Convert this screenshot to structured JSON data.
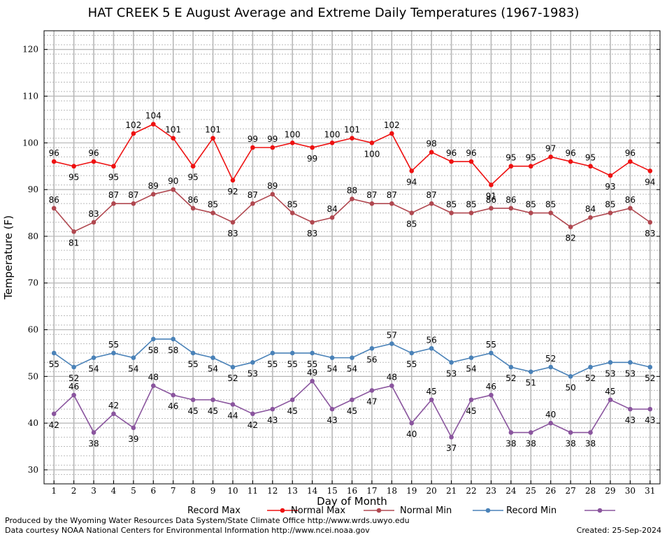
{
  "page": {
    "credit_line_1": "Produced by the Wyoming Water Resources Data System/State Climate Office http://www.wrds.uwyo.edu",
    "credit_line_2": "Data courtesy NOAA National Centers for Environmental Information http://www.ncei.noaa.gov",
    "created": "Created:  25-Sep-2024"
  },
  "chart_data": {
    "type": "line",
    "title": "HAT CREEK 5 E August Average and Extreme Daily Temperatures (1967-1983)",
    "xlabel": "Day of Month",
    "ylabel": "Temperature (F)",
    "xlim": [
      0.5,
      31.5
    ],
    "ylim": [
      27,
      124
    ],
    "yticks": [
      30,
      40,
      50,
      60,
      70,
      80,
      90,
      100,
      110,
      120
    ],
    "x": [
      1,
      2,
      3,
      4,
      5,
      6,
      7,
      8,
      9,
      10,
      11,
      12,
      13,
      14,
      15,
      16,
      17,
      18,
      19,
      20,
      21,
      22,
      23,
      24,
      25,
      26,
      27,
      28,
      29,
      30,
      31
    ],
    "grid": true,
    "legend_position": "bottom",
    "series": [
      {
        "name": "Record Max",
        "color": "#ee1111",
        "values": [
          96,
          95,
          96,
          95,
          102,
          104,
          101,
          95,
          101,
          92,
          99,
          99,
          100,
          99,
          100,
          101,
          100,
          102,
          94,
          98,
          96,
          96,
          91,
          95,
          95,
          97,
          96,
          95,
          93,
          96,
          94
        ]
      },
      {
        "name": "Normal Max",
        "color": "#b04850",
        "values": [
          86,
          81,
          83,
          87,
          87,
          89,
          90,
          86,
          85,
          83,
          87,
          89,
          85,
          83,
          84,
          88,
          87,
          87,
          85,
          87,
          85,
          85,
          86,
          86,
          85,
          85,
          82,
          84,
          85,
          86,
          83
        ]
      },
      {
        "name": "Normal Min",
        "color": "#4a82b8",
        "values": [
          55,
          52,
          54,
          55,
          54,
          58,
          58,
          55,
          54,
          52,
          53,
          55,
          55,
          55,
          54,
          54,
          56,
          57,
          55,
          56,
          53,
          54,
          55,
          52,
          51,
          52,
          50,
          52,
          53,
          53,
          52
        ]
      },
      {
        "name": "Record Min",
        "color": "#8a559e",
        "values": [
          42,
          46,
          38,
          42,
          39,
          48,
          46,
          45,
          45,
          44,
          42,
          43,
          45,
          49,
          43,
          45,
          47,
          48,
          40,
          45,
          37,
          45,
          46,
          38,
          38,
          40,
          38,
          38,
          45,
          43,
          43
        ]
      }
    ]
  }
}
